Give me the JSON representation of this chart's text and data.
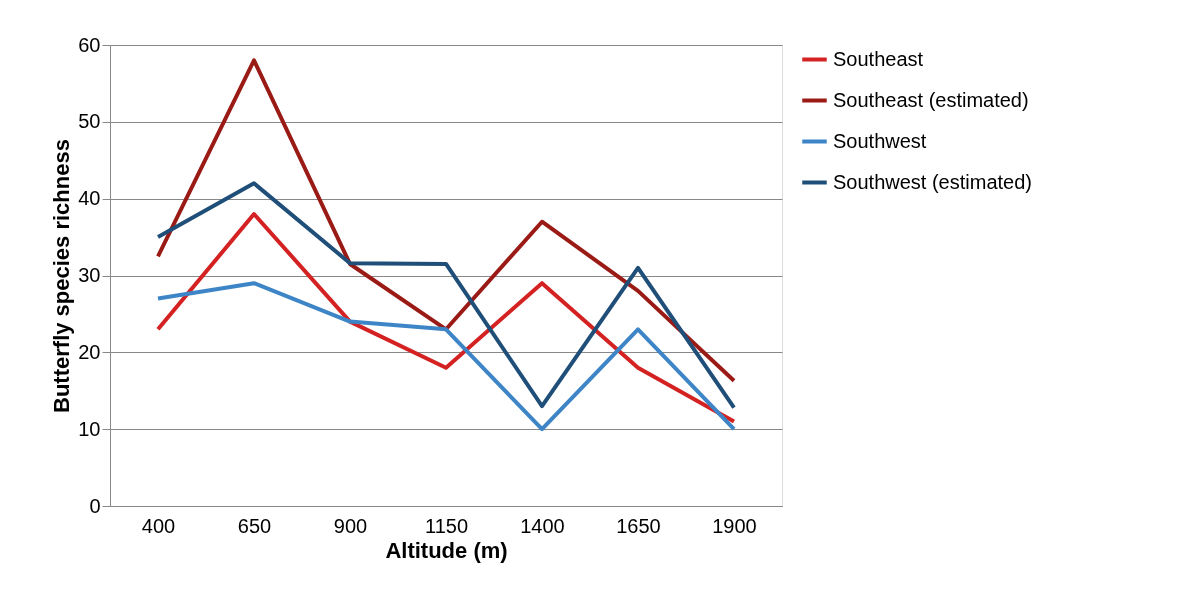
{
  "chart_data": {
    "type": "line",
    "xlabel": "Altitude (m)",
    "ylabel": "Butterfly species richness",
    "categories": [
      "400",
      "650",
      "900",
      "1150",
      "1400",
      "1650",
      "1900"
    ],
    "series": [
      {
        "name": "Southeast",
        "color": "#d42222",
        "values": [
          23,
          38,
          24,
          18,
          29,
          18,
          11
        ]
      },
      {
        "name": "Southeast (estimated)",
        "color": "#9a1a15",
        "values": [
          32.5,
          58,
          31.5,
          23,
          37,
          28,
          16.3
        ]
      },
      {
        "name": "Southwest",
        "color": "#3d85c6",
        "values": [
          27,
          29,
          24,
          23,
          10,
          23,
          10
        ]
      },
      {
        "name": "Southwest (estimated)",
        "color": "#1f4e79",
        "values": [
          35,
          42,
          31.6,
          31.5,
          13,
          31,
          12.8
        ]
      }
    ],
    "ylim": [
      0,
      60
    ],
    "yticks": [
      0,
      10,
      20,
      30,
      40,
      50,
      60
    ],
    "grid": "y",
    "legend": "right",
    "marker": "none",
    "line_style": "solid"
  }
}
